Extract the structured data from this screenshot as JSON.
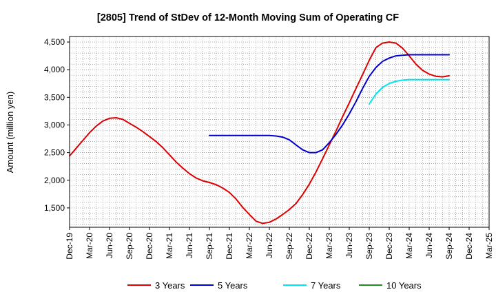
{
  "chart_data": {
    "type": "line",
    "title": "[2805]  Trend of StDev of 12-Month Moving Sum of Operating CF",
    "ylabel": "Amount (million yen)",
    "xlabel": "",
    "ylim": [
      1150,
      4600
    ],
    "yticks": [
      1500,
      2000,
      2500,
      3000,
      3500,
      4000,
      4500
    ],
    "ytick_labels": [
      "1,500",
      "2,000",
      "2,500",
      "3,000",
      "3,500",
      "4,000",
      "4,500"
    ],
    "x_start": "2019-12",
    "x_end": "2025-03",
    "xtick_labels": [
      "Dec-19",
      "Mar-20",
      "Jun-20",
      "Sep-20",
      "Dec-20",
      "Mar-21",
      "Jun-21",
      "Sep-21",
      "Dec-21",
      "Mar-22",
      "Jun-22",
      "Sep-22",
      "Dec-22",
      "Mar-23",
      "Jun-23",
      "Sep-23",
      "Dec-23",
      "Mar-24",
      "Jun-24",
      "Sep-24",
      "Dec-24",
      "Mar-25"
    ],
    "grid": true,
    "legend_position": "bottom",
    "series": [
      {
        "name": "3 Years",
        "color": "#dd0000",
        "x": [
          "2019-12",
          "2020-01",
          "2020-02",
          "2020-03",
          "2020-04",
          "2020-05",
          "2020-06",
          "2020-07",
          "2020-08",
          "2020-09",
          "2020-10",
          "2020-11",
          "2020-12",
          "2021-01",
          "2021-02",
          "2021-03",
          "2021-04",
          "2021-05",
          "2021-06",
          "2021-07",
          "2021-08",
          "2021-09",
          "2021-10",
          "2021-11",
          "2021-12",
          "2022-01",
          "2022-02",
          "2022-03",
          "2022-04",
          "2022-05",
          "2022-06",
          "2022-07",
          "2022-08",
          "2022-09",
          "2022-10",
          "2022-11",
          "2022-12",
          "2023-01",
          "2023-02",
          "2023-03",
          "2023-04",
          "2023-05",
          "2023-06",
          "2023-07",
          "2023-08",
          "2023-09",
          "2023-10",
          "2023-11",
          "2023-12",
          "2024-01",
          "2024-02",
          "2024-03",
          "2024-04",
          "2024-05",
          "2024-06",
          "2024-07",
          "2024-08",
          "2024-09"
        ],
        "values": [
          2440,
          2580,
          2720,
          2860,
          2980,
          3070,
          3120,
          3130,
          3100,
          3030,
          2960,
          2880,
          2790,
          2700,
          2590,
          2460,
          2330,
          2220,
          2120,
          2040,
          1990,
          1960,
          1920,
          1860,
          1780,
          1660,
          1510,
          1380,
          1260,
          1220,
          1240,
          1300,
          1380,
          1470,
          1580,
          1740,
          1930,
          2150,
          2390,
          2640,
          2890,
          3150,
          3400,
          3660,
          3910,
          4170,
          4400,
          4480,
          4500,
          4480,
          4390,
          4250,
          4100,
          3990,
          3920,
          3880,
          3870,
          3890
        ]
      },
      {
        "name": "5 Years",
        "color": "#0000cc",
        "x": [
          "2021-09",
          "2021-10",
          "2021-11",
          "2021-12",
          "2022-01",
          "2022-02",
          "2022-03",
          "2022-04",
          "2022-05",
          "2022-06",
          "2022-07",
          "2022-08",
          "2022-09",
          "2022-10",
          "2022-11",
          "2022-12",
          "2023-01",
          "2023-02",
          "2023-03",
          "2023-04",
          "2023-05",
          "2023-06",
          "2023-07",
          "2023-08",
          "2023-09",
          "2023-10",
          "2023-11",
          "2023-12",
          "2024-01",
          "2024-02",
          "2024-03",
          "2024-04",
          "2024-05",
          "2024-06",
          "2024-07",
          "2024-08",
          "2024-09"
        ],
        "values": [
          2810,
          2810,
          2810,
          2810,
          2810,
          2810,
          2810,
          2810,
          2810,
          2810,
          2800,
          2780,
          2730,
          2640,
          2550,
          2500,
          2500,
          2550,
          2680,
          2830,
          3000,
          3200,
          3420,
          3660,
          3880,
          4040,
          4150,
          4210,
          4250,
          4260,
          4270,
          4270,
          4270,
          4270,
          4270,
          4270,
          4270
        ]
      },
      {
        "name": "7 Years",
        "color": "#00e5ee",
        "x": [
          "2023-09",
          "2023-10",
          "2023-11",
          "2023-12",
          "2024-01",
          "2024-02",
          "2024-03",
          "2024-04",
          "2024-05",
          "2024-06",
          "2024-07",
          "2024-08",
          "2024-09"
        ],
        "values": [
          3380,
          3560,
          3680,
          3750,
          3790,
          3810,
          3820,
          3820,
          3820,
          3820,
          3820,
          3820,
          3820
        ]
      },
      {
        "name": "10 Years",
        "color": "#228b22",
        "x": [],
        "values": []
      }
    ]
  }
}
